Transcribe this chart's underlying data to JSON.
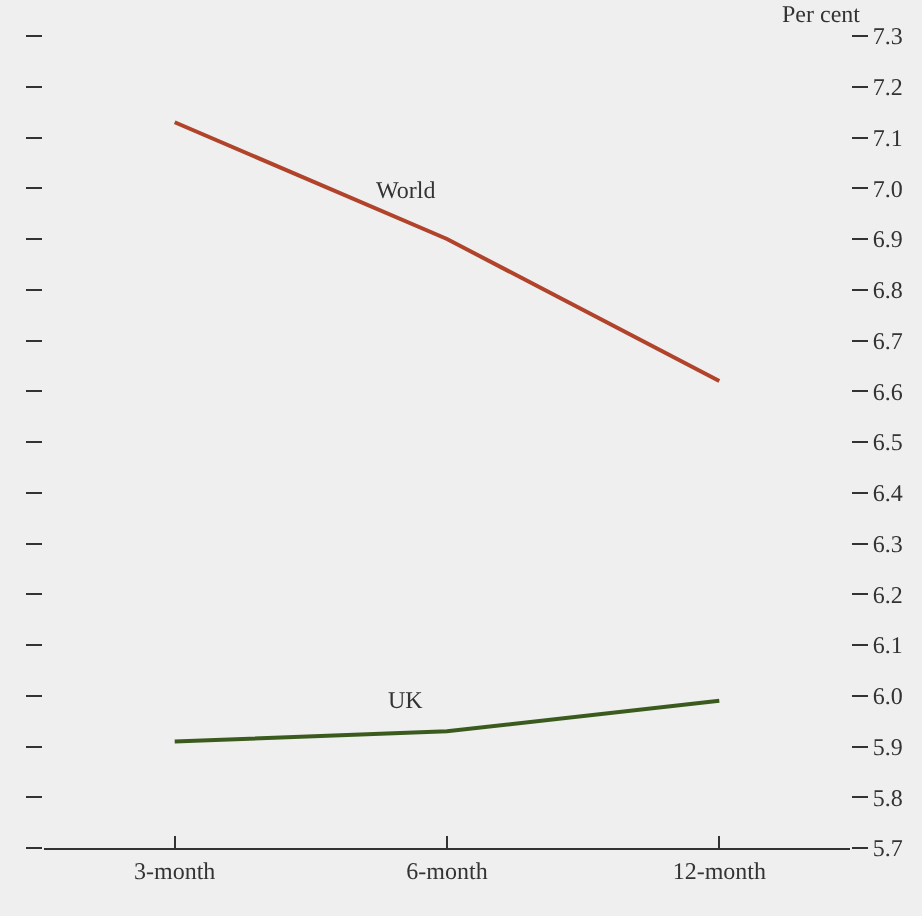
{
  "chart_data": {
    "type": "line",
    "ylabel": "Per cent",
    "categories": [
      "3-month",
      "6-month",
      "12-month"
    ],
    "series": [
      {
        "name": "World",
        "color": "#b0432a",
        "values": [
          7.13,
          6.9,
          6.62
        ]
      },
      {
        "name": "UK",
        "color": "#3b5a1e",
        "values": [
          5.91,
          5.93,
          5.99
        ]
      }
    ],
    "ylim": [
      5.7,
      7.3
    ],
    "yticks": [
      5.7,
      5.8,
      5.9,
      {
        "value": 6,
        "label": "6.0"
      },
      6.1,
      6.2,
      6.3,
      6.4,
      6.5,
      6.6,
      6.7,
      6.8,
      6.9,
      {
        "value": 7,
        "label": "7.0"
      },
      7.1,
      7.2,
      7.3
    ],
    "legend": false,
    "marker": "none",
    "line_style": "solid"
  }
}
